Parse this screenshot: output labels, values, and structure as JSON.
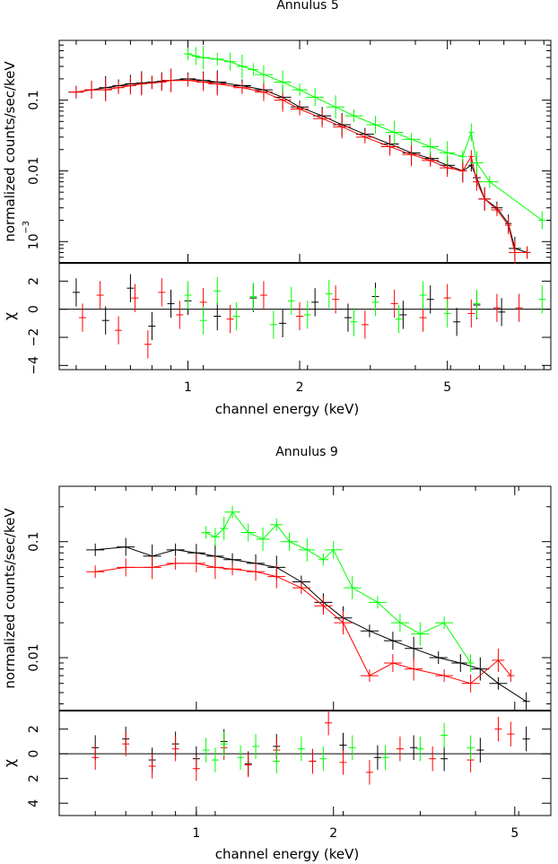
{
  "chart_data": [
    {
      "type": "scatter",
      "title": "Annulus 5",
      "xlabel": "channel energy (keV)",
      "x_scale": "log",
      "xlim": [
        0.45,
        9.5
      ],
      "x_ticks": [
        {
          "v": 1,
          "label": "1"
        },
        {
          "v": 2,
          "label": "2"
        },
        {
          "v": 5,
          "label": "5"
        }
      ],
      "top": {
        "ylabel": "normalized counts/sec/keV",
        "y_scale": "log",
        "ylim": [
          0.0005,
          0.7
        ],
        "y_ticks": [
          {
            "v": 0.1,
            "label": "0.1"
          },
          {
            "v": 0.01,
            "label": "0.01"
          },
          {
            "v": 0.001,
            "label": "10",
            "sup": "−3"
          }
        ]
      },
      "bottom": {
        "ylabel": "χ",
        "ylim": [
          -4.3,
          3.3
        ],
        "y_ticks": [
          {
            "v": 2,
            "label": "2"
          },
          {
            "v": 0,
            "label": "0"
          },
          {
            "v": -2,
            "label": "−2"
          },
          {
            "v": -4,
            "label": "−4"
          }
        ]
      },
      "series": [
        {
          "color": "#000000",
          "spectrum": [
            [
              0.5,
              0.13
            ],
            [
              0.55,
              0.14
            ],
            [
              0.6,
              0.15
            ],
            [
              0.65,
              0.16
            ],
            [
              0.7,
              0.17
            ],
            [
              0.75,
              0.175
            ],
            [
              0.8,
              0.18
            ],
            [
              0.85,
              0.185
            ],
            [
              0.9,
              0.19
            ],
            [
              1.0,
              0.2
            ],
            [
              1.1,
              0.19
            ],
            [
              1.2,
              0.18
            ],
            [
              1.4,
              0.16
            ],
            [
              1.6,
              0.14
            ],
            [
              1.8,
              0.11
            ],
            [
              2.0,
              0.08
            ],
            [
              2.3,
              0.06
            ],
            [
              2.6,
              0.045
            ],
            [
              3.0,
              0.033
            ],
            [
              3.5,
              0.024
            ],
            [
              4.0,
              0.018
            ],
            [
              4.5,
              0.015
            ],
            [
              5.0,
              0.012
            ],
            [
              5.5,
              0.01
            ],
            [
              5.8,
              0.012
            ],
            [
              6.0,
              0.008
            ],
            [
              6.3,
              0.004
            ],
            [
              6.8,
              0.003
            ],
            [
              7.3,
              0.0018
            ],
            [
              7.6,
              0.0008
            ],
            [
              8.2,
              0.0007
            ]
          ],
          "residuals": [
            [
              0.5,
              1.2
            ],
            [
              0.6,
              -0.8
            ],
            [
              0.7,
              1.5
            ],
            [
              0.8,
              -1.2
            ],
            [
              0.9,
              0.4
            ],
            [
              1.0,
              0.6
            ],
            [
              1.2,
              -0.5
            ],
            [
              1.5,
              0.8
            ],
            [
              1.8,
              -1.0
            ],
            [
              2.2,
              0.5
            ],
            [
              2.7,
              -0.6
            ],
            [
              3.2,
              0.9
            ],
            [
              3.8,
              -0.4
            ],
            [
              4.5,
              0.7
            ],
            [
              5.3,
              -0.9
            ],
            [
              6.0,
              0.3
            ],
            [
              7.0,
              -0.2
            ]
          ]
        },
        {
          "color": "#ff0000",
          "spectrum": [
            [
              0.5,
              0.13
            ],
            [
              0.55,
              0.14
            ],
            [
              0.6,
              0.14
            ],
            [
              0.65,
              0.15
            ],
            [
              0.7,
              0.16
            ],
            [
              0.75,
              0.17
            ],
            [
              0.8,
              0.175
            ],
            [
              0.85,
              0.18
            ],
            [
              0.9,
              0.19
            ],
            [
              1.0,
              0.19
            ],
            [
              1.1,
              0.18
            ],
            [
              1.2,
              0.17
            ],
            [
              1.4,
              0.15
            ],
            [
              1.6,
              0.13
            ],
            [
              1.8,
              0.1
            ],
            [
              2.0,
              0.075
            ],
            [
              2.3,
              0.055
            ],
            [
              2.6,
              0.042
            ],
            [
              3.0,
              0.03
            ],
            [
              3.5,
              0.022
            ],
            [
              4.0,
              0.017
            ],
            [
              4.5,
              0.014
            ],
            [
              5.0,
              0.011
            ],
            [
              5.5,
              0.01
            ],
            [
              5.8,
              0.016
            ],
            [
              6.0,
              0.007
            ],
            [
              6.3,
              0.004
            ],
            [
              6.8,
              0.0028
            ],
            [
              7.3,
              0.0017
            ],
            [
              7.6,
              0.0007
            ],
            [
              8.2,
              0.0007
            ]
          ],
          "residuals": [
            [
              0.52,
              -0.6
            ],
            [
              0.58,
              1.0
            ],
            [
              0.65,
              -1.5
            ],
            [
              0.72,
              0.8
            ],
            [
              0.78,
              -2.5
            ],
            [
              0.85,
              1.2
            ],
            [
              0.95,
              -0.4
            ],
            [
              1.1,
              0.5
            ],
            [
              1.3,
              -0.7
            ],
            [
              1.6,
              1.0
            ],
            [
              2.0,
              -0.5
            ],
            [
              2.5,
              0.7
            ],
            [
              3.0,
              -1.1
            ],
            [
              3.6,
              0.4
            ],
            [
              4.3,
              -0.6
            ],
            [
              5.0,
              0.8
            ],
            [
              5.8,
              -0.3
            ],
            [
              6.8,
              0.1
            ],
            [
              7.8,
              0.1
            ]
          ]
        },
        {
          "color": "#00ff00",
          "spectrum": [
            [
              1.0,
              0.45
            ],
            [
              1.05,
              0.42
            ],
            [
              1.1,
              0.4
            ],
            [
              1.2,
              0.38
            ],
            [
              1.3,
              0.35
            ],
            [
              1.4,
              0.3
            ],
            [
              1.5,
              0.27
            ],
            [
              1.6,
              0.23
            ],
            [
              1.8,
              0.18
            ],
            [
              2.0,
              0.14
            ],
            [
              2.2,
              0.11
            ],
            [
              2.5,
              0.08
            ],
            [
              2.8,
              0.06
            ],
            [
              3.2,
              0.045
            ],
            [
              3.6,
              0.035
            ],
            [
              4.0,
              0.028
            ],
            [
              4.5,
              0.022
            ],
            [
              5.0,
              0.018
            ],
            [
              5.5,
              0.016
            ],
            [
              5.8,
              0.035
            ],
            [
              6.0,
              0.013
            ],
            [
              6.5,
              0.007
            ],
            [
              9.0,
              0.002
            ]
          ],
          "residuals": [
            [
              1.0,
              1.0
            ],
            [
              1.1,
              -0.8
            ],
            [
              1.2,
              1.3
            ],
            [
              1.35,
              -0.5
            ],
            [
              1.5,
              0.9
            ],
            [
              1.7,
              -1.1
            ],
            [
              1.9,
              0.6
            ],
            [
              2.1,
              -0.4
            ],
            [
              2.4,
              1.1
            ],
            [
              2.8,
              -0.9
            ],
            [
              3.2,
              0.5
            ],
            [
              3.7,
              -0.7
            ],
            [
              4.3,
              1.0
            ],
            [
              5.0,
              -0.3
            ],
            [
              6.0,
              0.4
            ],
            [
              9.0,
              0.7
            ]
          ]
        }
      ]
    },
    {
      "type": "scatter",
      "title": "Annulus 9",
      "xlabel": "channel energy (keV)",
      "x_scale": "log",
      "xlim": [
        0.5,
        6.0
      ],
      "x_ticks": [
        {
          "v": 1,
          "label": "1"
        },
        {
          "v": 2,
          "label": "2"
        },
        {
          "v": 5,
          "label": "5"
        }
      ],
      "top": {
        "ylabel": "normalized counts/sec/keV",
        "y_scale": "log",
        "ylim": [
          0.0035,
          0.3
        ],
        "y_ticks": [
          {
            "v": 0.1,
            "label": "0.1"
          },
          {
            "v": 0.01,
            "label": "0.01"
          }
        ]
      },
      "bottom": {
        "ylabel": "χ",
        "ylim": [
          -5.0,
          3.5
        ],
        "y_ticks": [
          {
            "v": 2,
            "label": "2"
          },
          {
            "v": 0,
            "label": "0"
          },
          {
            "v": -2,
            "label": "2"
          },
          {
            "v": -4,
            "label": "4"
          }
        ]
      },
      "series": [
        {
          "color": "#000000",
          "spectrum": [
            [
              0.6,
              0.085
            ],
            [
              0.7,
              0.09
            ],
            [
              0.8,
              0.075
            ],
            [
              0.9,
              0.085
            ],
            [
              1.0,
              0.08
            ],
            [
              1.1,
              0.075
            ],
            [
              1.2,
              0.07
            ],
            [
              1.35,
              0.065
            ],
            [
              1.5,
              0.06
            ],
            [
              1.7,
              0.045
            ],
            [
              1.9,
              0.03
            ],
            [
              2.1,
              0.022
            ],
            [
              2.4,
              0.017
            ],
            [
              2.7,
              0.014
            ],
            [
              3.0,
              0.012
            ],
            [
              3.4,
              0.01
            ],
            [
              3.8,
              0.009
            ],
            [
              4.2,
              0.008
            ],
            [
              4.6,
              0.006
            ],
            [
              5.3,
              0.0042
            ]
          ],
          "residuals": [
            [
              0.6,
              0.5
            ],
            [
              0.7,
              1.2
            ],
            [
              0.8,
              -0.5
            ],
            [
              0.9,
              0.8
            ],
            [
              1.0,
              -0.4
            ],
            [
              1.15,
              1.0
            ],
            [
              1.3,
              -0.8
            ],
            [
              1.5,
              0.6
            ],
            [
              1.8,
              -0.6
            ],
            [
              2.1,
              0.7
            ],
            [
              2.5,
              -0.3
            ],
            [
              3.0,
              0.5
            ],
            [
              3.5,
              -0.4
            ],
            [
              4.2,
              0.3
            ],
            [
              5.3,
              1.2
            ]
          ]
        },
        {
          "color": "#ff0000",
          "spectrum": [
            [
              0.6,
              0.055
            ],
            [
              0.7,
              0.06
            ],
            [
              0.8,
              0.06
            ],
            [
              0.9,
              0.065
            ],
            [
              1.0,
              0.065
            ],
            [
              1.1,
              0.06
            ],
            [
              1.2,
              0.058
            ],
            [
              1.35,
              0.055
            ],
            [
              1.5,
              0.05
            ],
            [
              1.7,
              0.04
            ],
            [
              1.9,
              0.028
            ],
            [
              2.1,
              0.02
            ],
            [
              2.4,
              0.007
            ],
            [
              2.7,
              0.009
            ],
            [
              3.0,
              0.008
            ],
            [
              3.5,
              0.007
            ],
            [
              4.0,
              0.006
            ],
            [
              4.6,
              0.0095
            ],
            [
              4.9,
              0.007
            ]
          ],
          "residuals": [
            [
              0.6,
              -0.3
            ],
            [
              0.7,
              0.8
            ],
            [
              0.8,
              -1.0
            ],
            [
              0.9,
              0.4
            ],
            [
              1.0,
              -1.2
            ],
            [
              1.15,
              0.5
            ],
            [
              1.3,
              -0.9
            ],
            [
              1.5,
              0.3
            ],
            [
              1.8,
              -0.6
            ],
            [
              1.95,
              2.5
            ],
            [
              2.1,
              -0.7
            ],
            [
              2.4,
              -1.5
            ],
            [
              2.8,
              0.4
            ],
            [
              3.3,
              -0.4
            ],
            [
              4.0,
              -0.5
            ],
            [
              4.6,
              2.0
            ],
            [
              4.9,
              1.6
            ]
          ]
        },
        {
          "color": "#00ff00",
          "spectrum": [
            [
              1.05,
              0.12
            ],
            [
              1.1,
              0.11
            ],
            [
              1.15,
              0.13
            ],
            [
              1.2,
              0.18
            ],
            [
              1.3,
              0.12
            ],
            [
              1.4,
              0.105
            ],
            [
              1.5,
              0.14
            ],
            [
              1.6,
              0.1
            ],
            [
              1.75,
              0.085
            ],
            [
              1.9,
              0.07
            ],
            [
              2.0,
              0.085
            ],
            [
              2.2,
              0.04
            ],
            [
              2.5,
              0.03
            ],
            [
              2.8,
              0.02
            ],
            [
              3.1,
              0.016
            ],
            [
              3.5,
              0.02
            ],
            [
              4.0,
              0.009
            ]
          ],
          "residuals": [
            [
              1.05,
              0.3
            ],
            [
              1.1,
              -0.5
            ],
            [
              1.15,
              0.8
            ],
            [
              1.25,
              -0.3
            ],
            [
              1.35,
              0.6
            ],
            [
              1.5,
              -0.6
            ],
            [
              1.7,
              0.4
            ],
            [
              1.9,
              -0.4
            ],
            [
              2.2,
              0.5
            ],
            [
              2.6,
              -0.3
            ],
            [
              3.1,
              0.4
            ],
            [
              3.5,
              1.5
            ],
            [
              4.0,
              0.5
            ]
          ]
        }
      ]
    }
  ]
}
